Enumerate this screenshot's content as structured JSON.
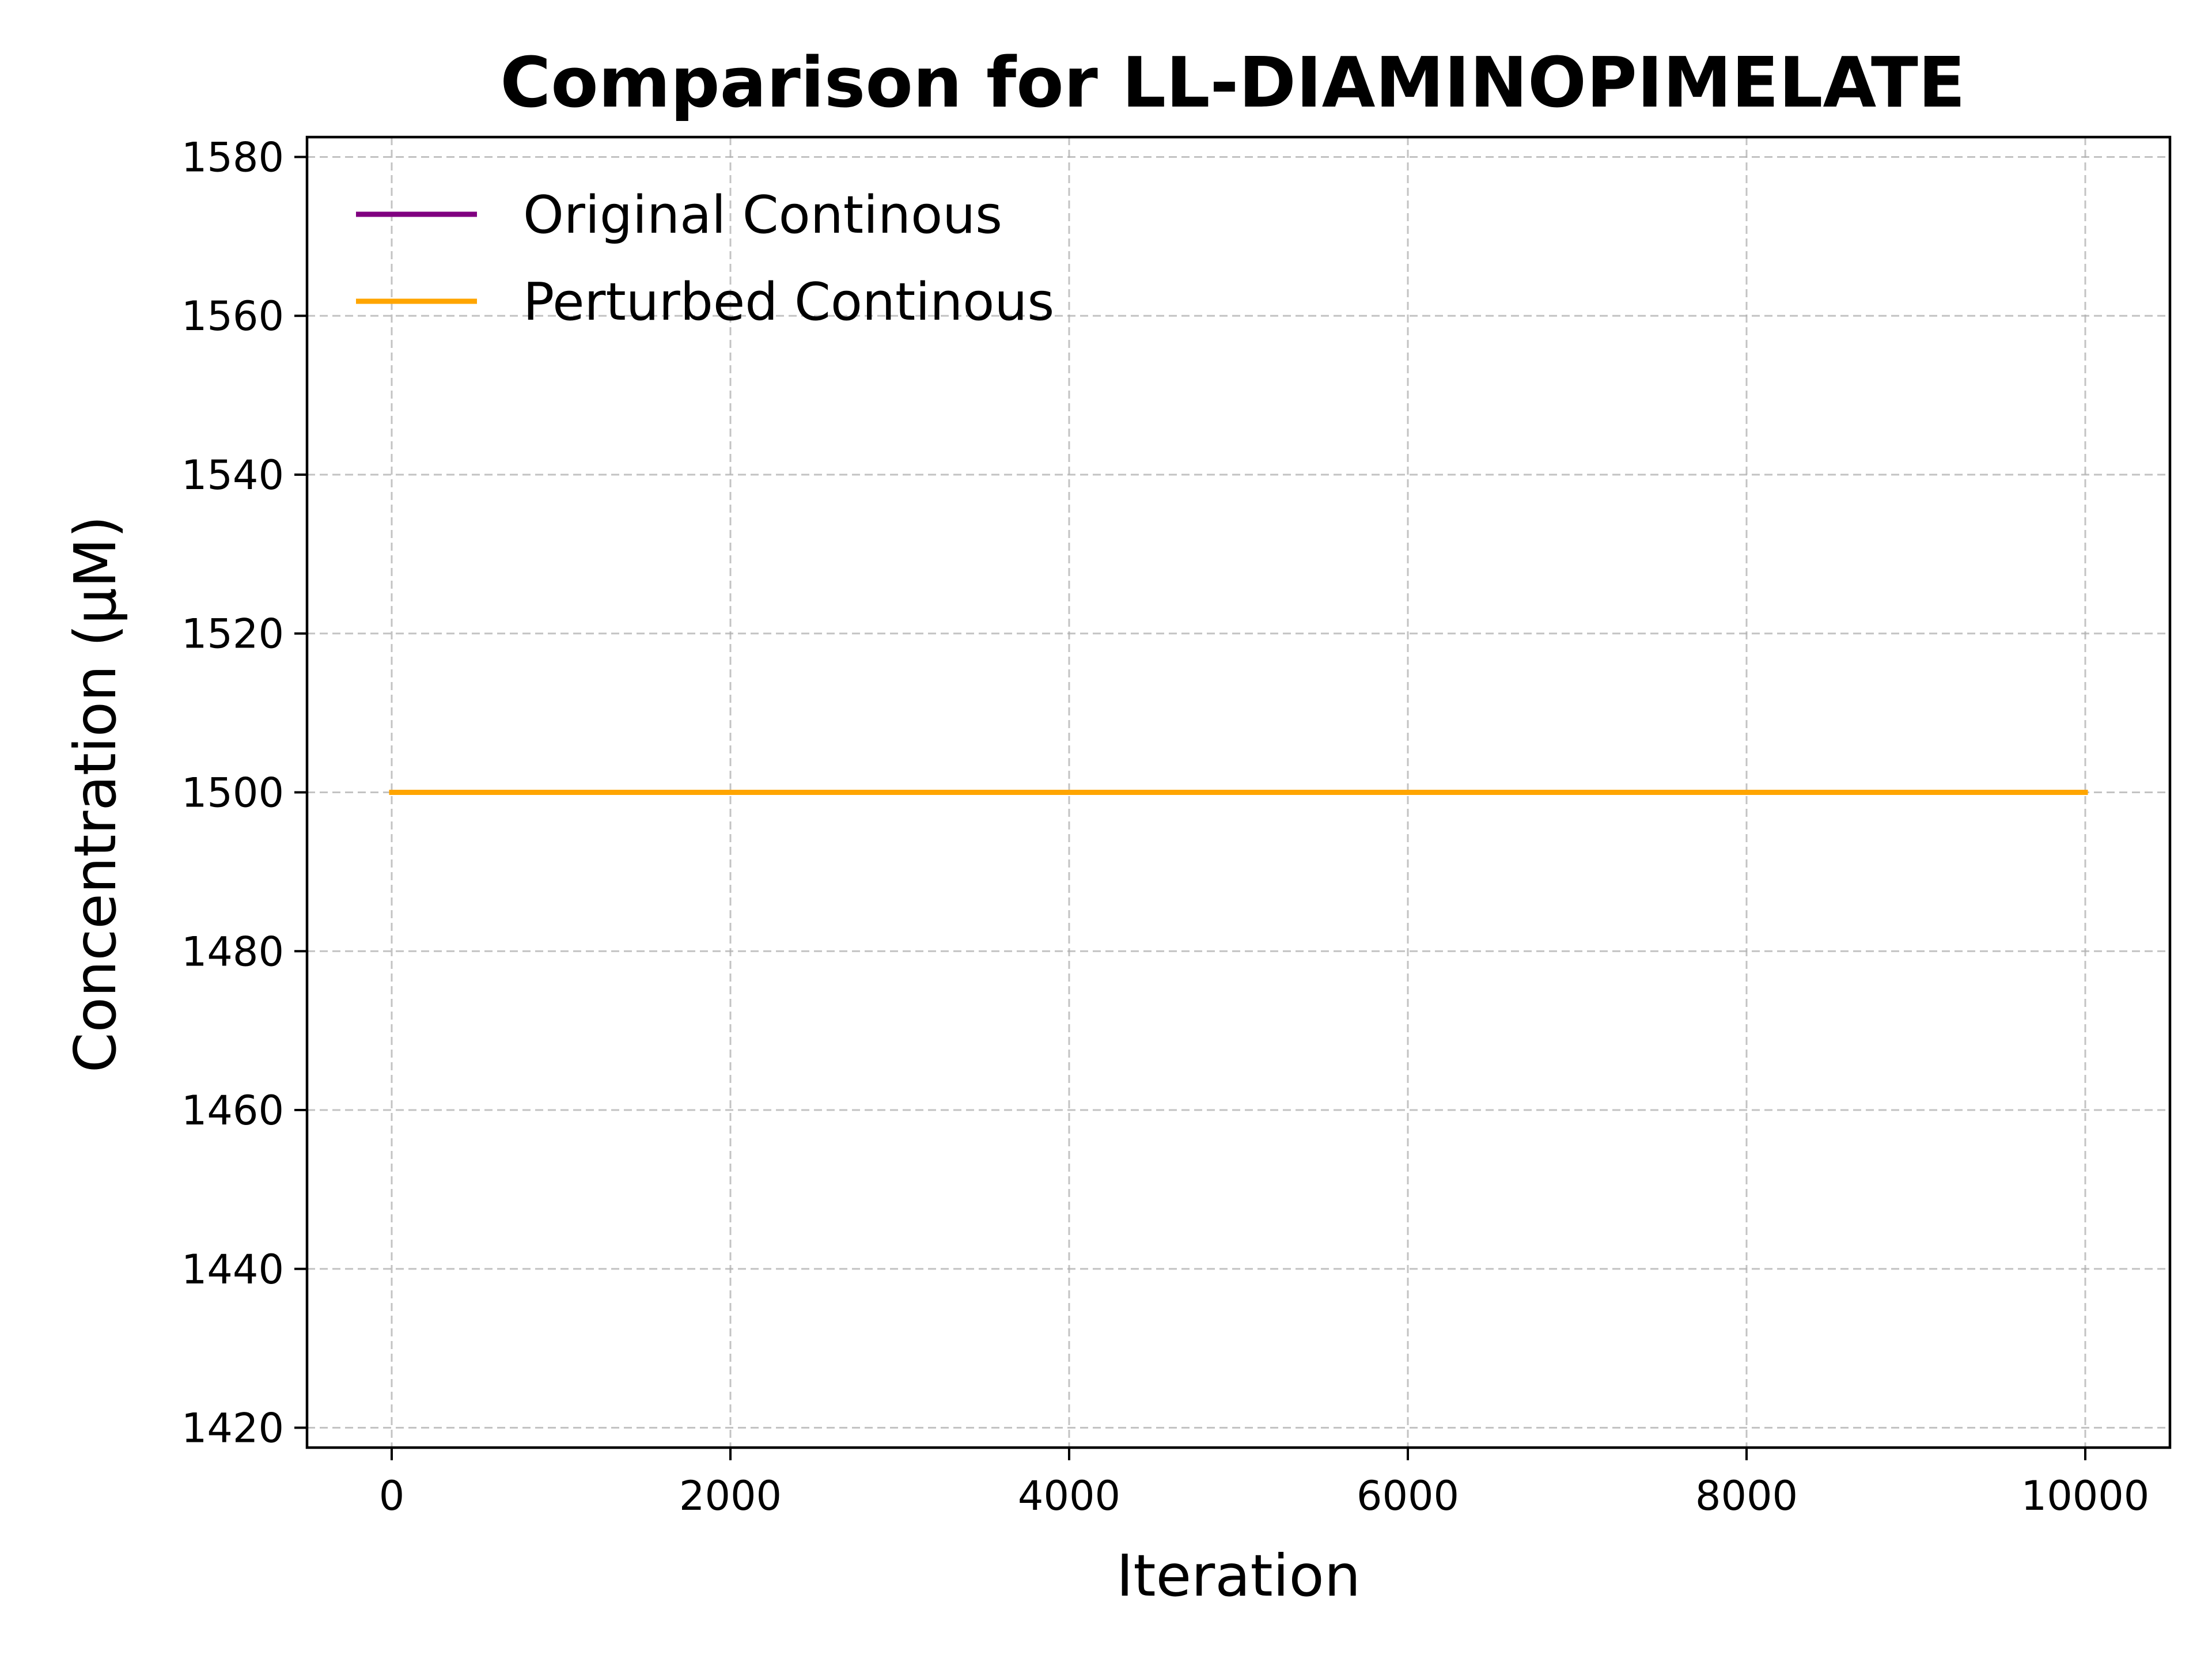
{
  "chart_data": {
    "type": "line",
    "title": "Comparison for LL-DIAMINOPIMELATE",
    "xlabel": "Iteration",
    "ylabel": "Concentration (μM)",
    "xlim": [
      -500,
      10500
    ],
    "ylim": [
      1417.5,
      1582.5
    ],
    "xticks": [
      0,
      2000,
      4000,
      6000,
      8000,
      10000
    ],
    "yticks": [
      1420,
      1440,
      1460,
      1480,
      1500,
      1520,
      1540,
      1560,
      1580
    ],
    "xtick_labels": [
      "0",
      "2000",
      "4000",
      "6000",
      "8000",
      "10000"
    ],
    "ytick_labels": [
      "1420",
      "1440",
      "1460",
      "1480",
      "1500",
      "1520",
      "1540",
      "1560",
      "1580"
    ],
    "grid": true,
    "legend_position": "upper-left",
    "series": [
      {
        "name": "Original Continous",
        "color": "#800080",
        "x": [
          0,
          10000
        ],
        "y": [
          1500,
          1500
        ]
      },
      {
        "name": "Perturbed Continous",
        "color": "#FFA500",
        "x": [
          0,
          10000
        ],
        "y": [
          1500,
          1500
        ]
      }
    ]
  }
}
